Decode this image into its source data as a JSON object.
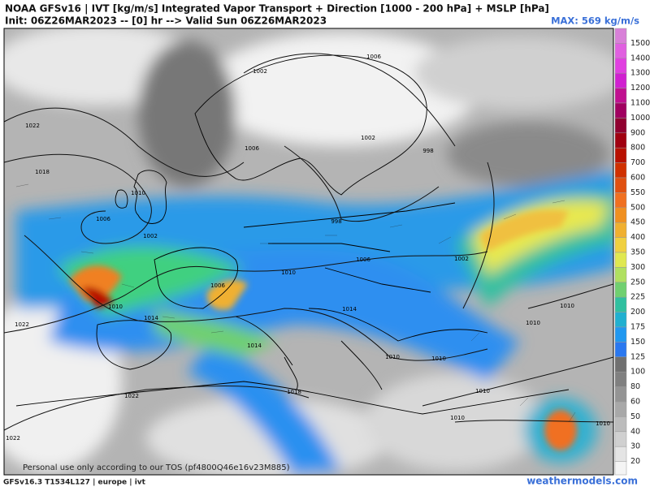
{
  "header": {
    "title": "NOAA GFSv16 | IVT [kg/m/s] Integrated Vapor Transport + Direction [1000 - 200 hPa] + MSLP [hPa]",
    "init": "Init: 06Z26MAR2023 -- [0] hr --> Valid Sun 06Z26MAR2023",
    "max": "MAX: 569 kg/m/s"
  },
  "colorbar": {
    "levels": [
      {
        "label": "1500",
        "color": "#d880d8"
      },
      {
        "label": "1400",
        "color": "#e060e0"
      },
      {
        "label": "1300",
        "color": "#e040e0"
      },
      {
        "label": "1200",
        "color": "#d020d0"
      },
      {
        "label": "1100",
        "color": "#c01090"
      },
      {
        "label": "1000",
        "color": "#a00060"
      },
      {
        "label": "900",
        "color": "#900030"
      },
      {
        "label": "800",
        "color": "#a00010"
      },
      {
        "label": "700",
        "color": "#b81000"
      },
      {
        "label": "600",
        "color": "#d03000"
      },
      {
        "label": "550",
        "color": "#e05010"
      },
      {
        "label": "500",
        "color": "#f07020"
      },
      {
        "label": "450",
        "color": "#f09020"
      },
      {
        "label": "400",
        "color": "#f0b030"
      },
      {
        "label": "350",
        "color": "#f0d040"
      },
      {
        "label": "300",
        "color": "#e0e850"
      },
      {
        "label": "250",
        "color": "#b0e060"
      },
      {
        "label": "225",
        "color": "#70d070"
      },
      {
        "label": "200",
        "color": "#30c0a0"
      },
      {
        "label": "175",
        "color": "#20b0d0"
      },
      {
        "label": "150",
        "color": "#2098f0"
      },
      {
        "label": "125",
        "color": "#2a78f0"
      },
      {
        "label": "100",
        "color": "#707070"
      },
      {
        "label": "80",
        "color": "#808080"
      },
      {
        "label": "60",
        "color": "#949494"
      },
      {
        "label": "50",
        "color": "#a8a8a8"
      },
      {
        "label": "40",
        "color": "#bcbcbc"
      },
      {
        "label": "30",
        "color": "#d0d0d0"
      },
      {
        "label": "20",
        "color": "#e4e4e4"
      }
    ]
  },
  "isobar_labels": [
    "1022",
    "1018",
    "1002",
    "1006",
    "1006",
    "1002",
    "998",
    "1010",
    "1006",
    "1002",
    "998",
    "1006",
    "1010",
    "1006",
    "1010",
    "1014",
    "1022",
    "1014",
    "1014",
    "1010",
    "1010",
    "1002",
    "1010",
    "1010",
    "1022",
    "1018",
    "1010",
    "1010",
    "1022",
    "1010"
  ],
  "watermark": "Personal use only according to our TOS (pf4800Q46e16v23M885)",
  "footer": {
    "model": "GFSv16.3 T1534L127 | europe | ivt",
    "site": "weathermodels.com"
  }
}
